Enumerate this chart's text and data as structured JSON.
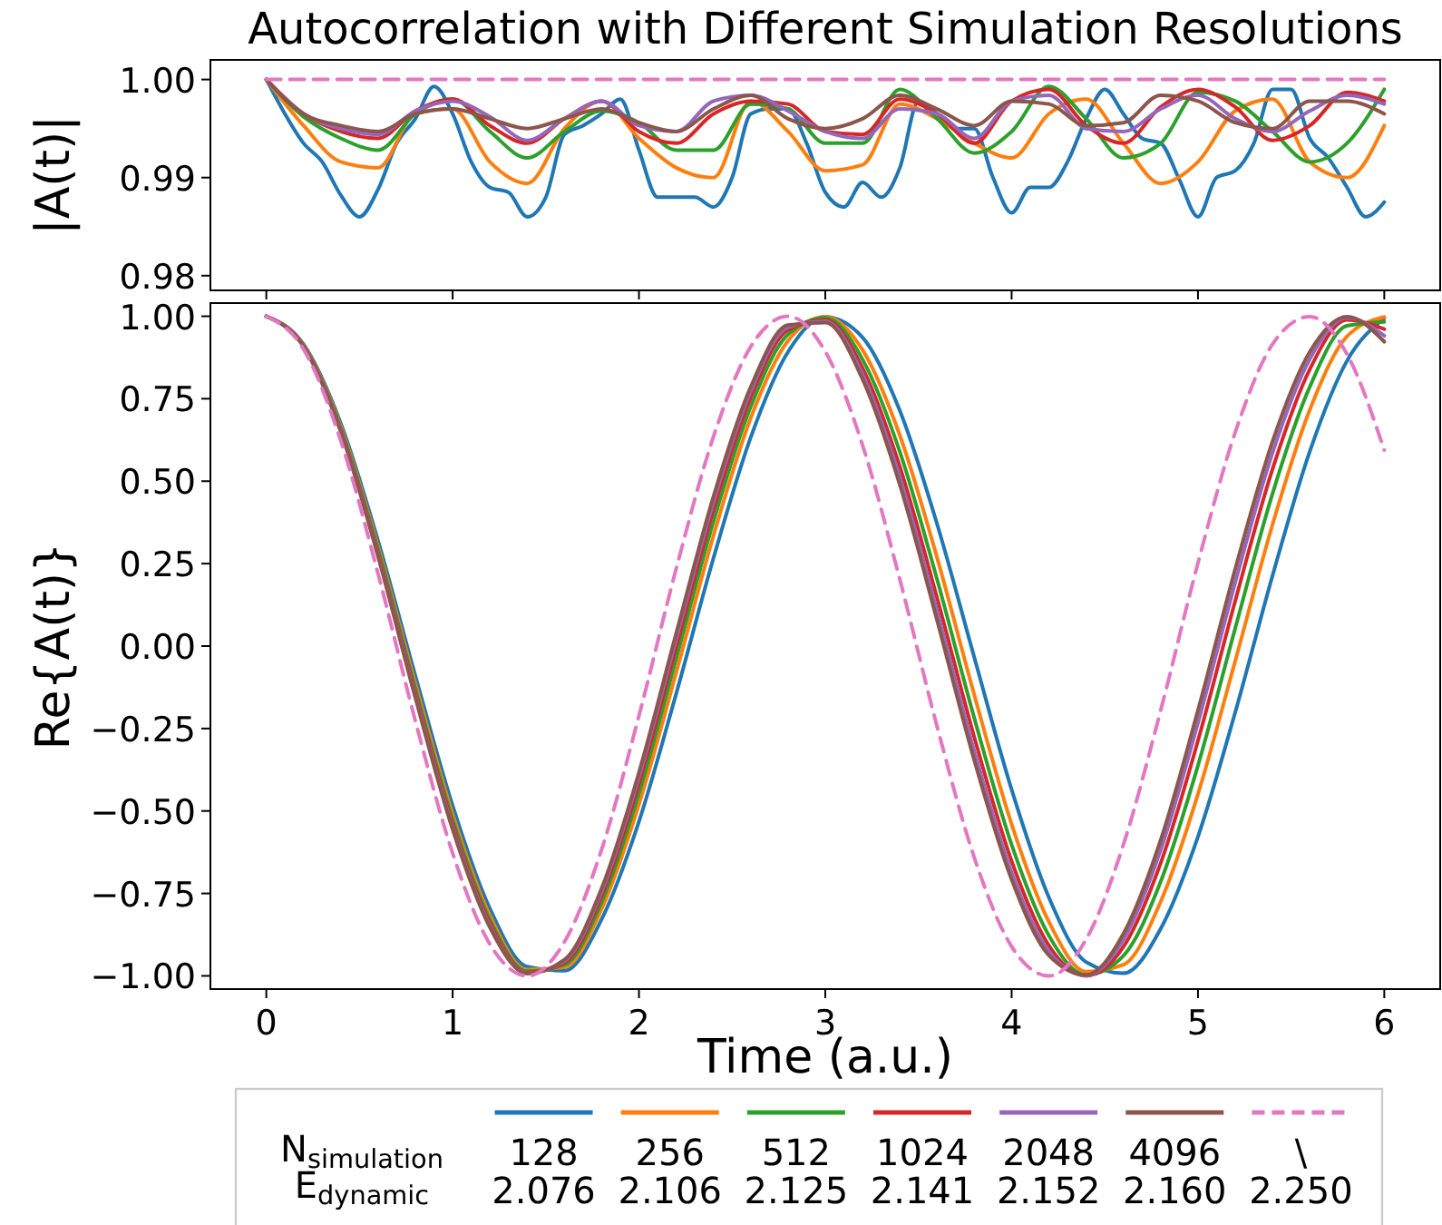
{
  "chart_data": [
    {
      "type": "line",
      "title": "Autocorrelation with Different Simulation Resolutions",
      "ylabel": "|A(t)|",
      "xlim": [
        -0.3,
        6.3
      ],
      "ylim": [
        0.9785,
        1.002
      ],
      "xticks": [
        0,
        1,
        2,
        3,
        4,
        5,
        6
      ],
      "yticks": [
        0.98,
        0.99,
        {
          "value": 1,
          "label": "1.00"
        }
      ],
      "tick_labels": "y",
      "x": [
        0,
        0.2,
        0.4,
        0.6,
        0.8,
        1.0,
        1.2,
        1.4,
        1.6,
        1.8,
        2.0,
        2.2,
        2.4,
        2.6,
        2.8,
        3.0,
        3.2,
        3.4,
        3.6,
        3.8,
        4.0,
        4.2,
        4.4,
        4.6,
        4.8,
        5.0,
        5.2,
        5.4,
        5.6,
        5.8,
        6.0
      ],
      "series": [
        {
          "color": "#1f77b4",
          "x": [
            0,
            0.1,
            0.2,
            0.3,
            0.4,
            0.5,
            0.6,
            0.7,
            0.8,
            0.9,
            1.0,
            1.1,
            1.2,
            1.3,
            1.4,
            1.5,
            1.6,
            1.7,
            1.8,
            1.9,
            2.0,
            2.1,
            2.2,
            2.3,
            2.4,
            2.5,
            2.6,
            2.7,
            2.8,
            2.9,
            3.0,
            3.1,
            3.2,
            3.3,
            3.4,
            3.5,
            3.6,
            3.7,
            3.8,
            3.9,
            4.0,
            4.1,
            4.2,
            4.3,
            4.4,
            4.5,
            4.6,
            4.7,
            4.8,
            4.9,
            5.0,
            5.1,
            5.2,
            5.3,
            5.4,
            5.5,
            5.6,
            5.7,
            5.8,
            5.9,
            6.0
          ],
          "values": [
            1.0,
            0.9965,
            0.9935,
            0.9916,
            0.9882,
            0.986,
            0.9888,
            0.9935,
            0.996,
            0.9993,
            0.9965,
            0.9916,
            0.989,
            0.9885,
            0.986,
            0.988,
            0.9944,
            0.9953,
            0.9965,
            0.998,
            0.9928,
            0.988,
            0.988,
            0.988,
            0.987,
            0.99,
            0.9965,
            0.997,
            0.997,
            0.9935,
            0.9885,
            0.987,
            0.9895,
            0.988,
            0.991,
            0.9978,
            0.9965,
            0.995,
            0.995,
            0.99,
            0.9864,
            0.989,
            0.989,
            0.9916,
            0.996,
            0.999,
            0.9965,
            0.994,
            0.9935,
            0.9898,
            0.986,
            0.99,
            0.9907,
            0.9935,
            0.999,
            0.999,
            0.994,
            0.992,
            0.989,
            0.986,
            0.9875
          ]
        },
        {
          "color": "#ff7f0e",
          "values": [
            1.0,
            0.9953,
            0.9916,
            0.991,
            0.9965,
            0.997,
            0.9916,
            0.9894,
            0.995,
            0.9978,
            0.994,
            0.991,
            0.99,
            0.9978,
            0.9947,
            0.9907,
            0.9913,
            0.9975,
            0.996,
            0.9935,
            0.992,
            0.9965,
            0.998,
            0.9935,
            0.9894,
            0.9916,
            0.9968,
            0.998,
            0.9916,
            0.99,
            0.9953
          ]
        },
        {
          "color": "#2ca02c",
          "values": [
            1.0,
            0.9962,
            0.994,
            0.9928,
            0.9965,
            0.998,
            0.9947,
            0.992,
            0.9947,
            0.9968,
            0.9956,
            0.9928,
            0.9928,
            0.9975,
            0.997,
            0.9935,
            0.9935,
            0.999,
            0.996,
            0.9925,
            0.9947,
            0.9993,
            0.996,
            0.992,
            0.9935,
            0.9987,
            0.9978,
            0.9947,
            0.9916,
            0.9935,
            0.999
          ]
        },
        {
          "color": "#d62728",
          "values": [
            1.0,
            0.9965,
            0.9947,
            0.994,
            0.9968,
            0.998,
            0.9953,
            0.9935,
            0.996,
            0.9978,
            0.9947,
            0.9935,
            0.9965,
            0.9978,
            0.9975,
            0.9947,
            0.9944,
            0.998,
            0.9965,
            0.9935,
            0.9978,
            0.999,
            0.9953,
            0.9935,
            0.9972,
            0.999,
            0.9972,
            0.9938,
            0.9953,
            0.9987,
            0.9978
          ]
        },
        {
          "color": "#9467bd",
          "values": [
            1.0,
            0.9965,
            0.995,
            0.9944,
            0.9968,
            0.9978,
            0.9962,
            0.9938,
            0.996,
            0.9978,
            0.9953,
            0.9947,
            0.9978,
            0.9984,
            0.9968,
            0.9947,
            0.994,
            0.997,
            0.9965,
            0.994,
            0.9978,
            0.9984,
            0.995,
            0.9947,
            0.997,
            0.9984,
            0.996,
            0.9947,
            0.9968,
            0.9984,
            0.9975
          ]
        },
        {
          "color": "#8c564b",
          "values": [
            1.0,
            0.9965,
            0.9953,
            0.9947,
            0.9965,
            0.997,
            0.996,
            0.995,
            0.996,
            0.997,
            0.9956,
            0.9947,
            0.997,
            0.9984,
            0.996,
            0.995,
            0.996,
            0.9984,
            0.997,
            0.9953,
            0.9978,
            0.9975,
            0.9953,
            0.9956,
            0.9984,
            0.9978,
            0.9956,
            0.995,
            0.9978,
            0.9978,
            0.9965
          ]
        },
        {
          "color": "#e377c2",
          "line_style": "dashed",
          "x": [
            0,
            6
          ],
          "values": [
            1.0,
            1.0
          ]
        }
      ]
    },
    {
      "type": "line",
      "xlabel": "Time (a.u.)",
      "ylabel": "Re{A(t)}",
      "xlim": [
        -0.3,
        6.3
      ],
      "ylim": [
        -1.04,
        1.04
      ],
      "xticks": [
        0,
        1,
        2,
        3,
        4,
        5,
        6
      ],
      "yticks": [
        {
          "value": -1,
          "label": "−1.00"
        },
        {
          "value": -0.75,
          "label": "−0.75"
        },
        {
          "value": -0.5,
          "label": "−0.50"
        },
        {
          "value": -0.25,
          "label": "−0.25"
        },
        {
          "value": 0,
          "label": "0.00"
        },
        {
          "value": 0.25,
          "label": "0.25"
        },
        {
          "value": 0.5,
          "label": "0.50"
        },
        {
          "value": 0.75,
          "label": "0.75"
        },
        {
          "value": 1,
          "label": "1.00"
        }
      ],
      "legend": "bottom",
      "legend_title": "N$_{simulation}$\nE$_{dynamic}$",
      "x": [
        0,
        0.2,
        0.4,
        0.6,
        0.8,
        1.0,
        1.2,
        1.4,
        1.6,
        1.8,
        2.0,
        2.2,
        2.4,
        2.6,
        2.8,
        3.0,
        3.2,
        3.4,
        3.6,
        3.8,
        4.0,
        4.2,
        4.4,
        4.6,
        4.8,
        5.0,
        5.2,
        5.4,
        5.6,
        5.8,
        6.0
      ],
      "series": [
        {
          "name": "128\n2.076",
          "color": "#1f77b4",
          "values": [
            1,
            0.915,
            0.675,
            0.319,
            -0.09,
            -0.484,
            -0.796,
            -0.972,
            -0.984,
            -0.828,
            -0.532,
            -0.144,
            0.267,
            0.633,
            0.892,
            0.998,
            0.936,
            0.714,
            0.37,
            -0.035,
            -0.435,
            -0.762,
            -0.958,
            -0.992,
            -0.857,
            -0.578,
            -0.201,
            0.213,
            0.59,
            0.865,
            0.994
          ]
        },
        {
          "name": "256\n2.106",
          "color": "#ff7f0e",
          "values": [
            1,
            0.913,
            0.666,
            0.302,
            -0.114,
            -0.51,
            -0.817,
            -0.981,
            -0.974,
            -0.797,
            -0.48,
            -0.08,
            0.335,
            0.692,
            0.926,
            0.999,
            0.898,
            0.639,
            0.268,
            -0.149,
            -0.54,
            -0.836,
            -0.987,
            -0.966,
            -0.775,
            -0.449,
            -0.045,
            0.368,
            0.716,
            0.939,
            0.998
          ]
        },
        {
          "name": "512\n2.125",
          "color": "#2ca02c",
          "values": [
            1,
            0.911,
            0.66,
            0.292,
            -0.129,
            -0.526,
            -0.83,
            -0.986,
            -0.967,
            -0.776,
            -0.447,
            -0.038,
            0.378,
            0.726,
            0.945,
            0.996,
            0.869,
            0.589,
            0.202,
            -0.219,
            -0.602,
            -0.878,
            -0.997,
            -0.939,
            -0.714,
            -0.362,
            0.054,
            0.462,
            0.786,
            0.971,
            0.983
          ]
        },
        {
          "name": "1024\n2.141",
          "color": "#d62728",
          "values": [
            1,
            0.91,
            0.655,
            0.282,
            -0.142,
            -0.54,
            -0.84,
            -0.99,
            -0.96,
            -0.757,
            -0.417,
            -0.003,
            0.413,
            0.754,
            0.959,
            0.99,
            0.843,
            0.544,
            0.146,
            -0.277,
            -0.652,
            -0.908,
            -1.0,
            -0.912,
            -0.658,
            -0.287,
            0.137,
            0.536,
            0.839,
            0.989,
            0.961
          ]
        },
        {
          "name": "2048\n2.152",
          "color": "#9467bd",
          "values": [
            1,
            0.909,
            0.652,
            0.276,
            -0.151,
            -0.549,
            -0.848,
            -0.992,
            -0.955,
            -0.744,
            -0.397,
            0.022,
            0.437,
            0.773,
            0.967,
            0.985,
            0.824,
            0.512,
            0.106,
            -0.319,
            -0.686,
            -0.926,
            -0.999,
            -0.89,
            -0.618,
            -0.233,
            0.193,
            0.586,
            0.87,
            0.996,
            0.941
          ]
        },
        {
          "name": "4096\n2.160",
          "color": "#8c564b",
          "values": [
            1,
            0.908,
            0.649,
            0.271,
            -0.157,
            -0.556,
            -0.853,
            -0.993,
            -0.951,
            -0.734,
            -0.383,
            0.039,
            0.454,
            0.786,
            0.973,
            0.981,
            0.809,
            0.489,
            0.078,
            -0.347,
            -0.708,
            -0.938,
            -0.997,
            -0.872,
            -0.588,
            -0.195,
            0.234,
            0.62,
            0.892,
            0.999,
            0.923
          ]
        },
        {
          "name": "\\\n2.250",
          "color": "#e377c2",
          "line_style": "dashed",
          "values": [
            1,
            0.9,
            0.622,
            0.219,
            -0.227,
            -0.628,
            -0.904,
            -1.0,
            -0.897,
            -0.616,
            -0.211,
            0.235,
            0.635,
            0.908,
            1.0,
            0.893,
            0.609,
            0.202,
            -0.244,
            -0.642,
            -0.911,
            -1.0,
            -0.889,
            -0.602,
            -0.195,
            0.252,
            0.648,
            0.915,
            0.999,
            0.885,
            0.594
          ]
        }
      ]
    }
  ]
}
